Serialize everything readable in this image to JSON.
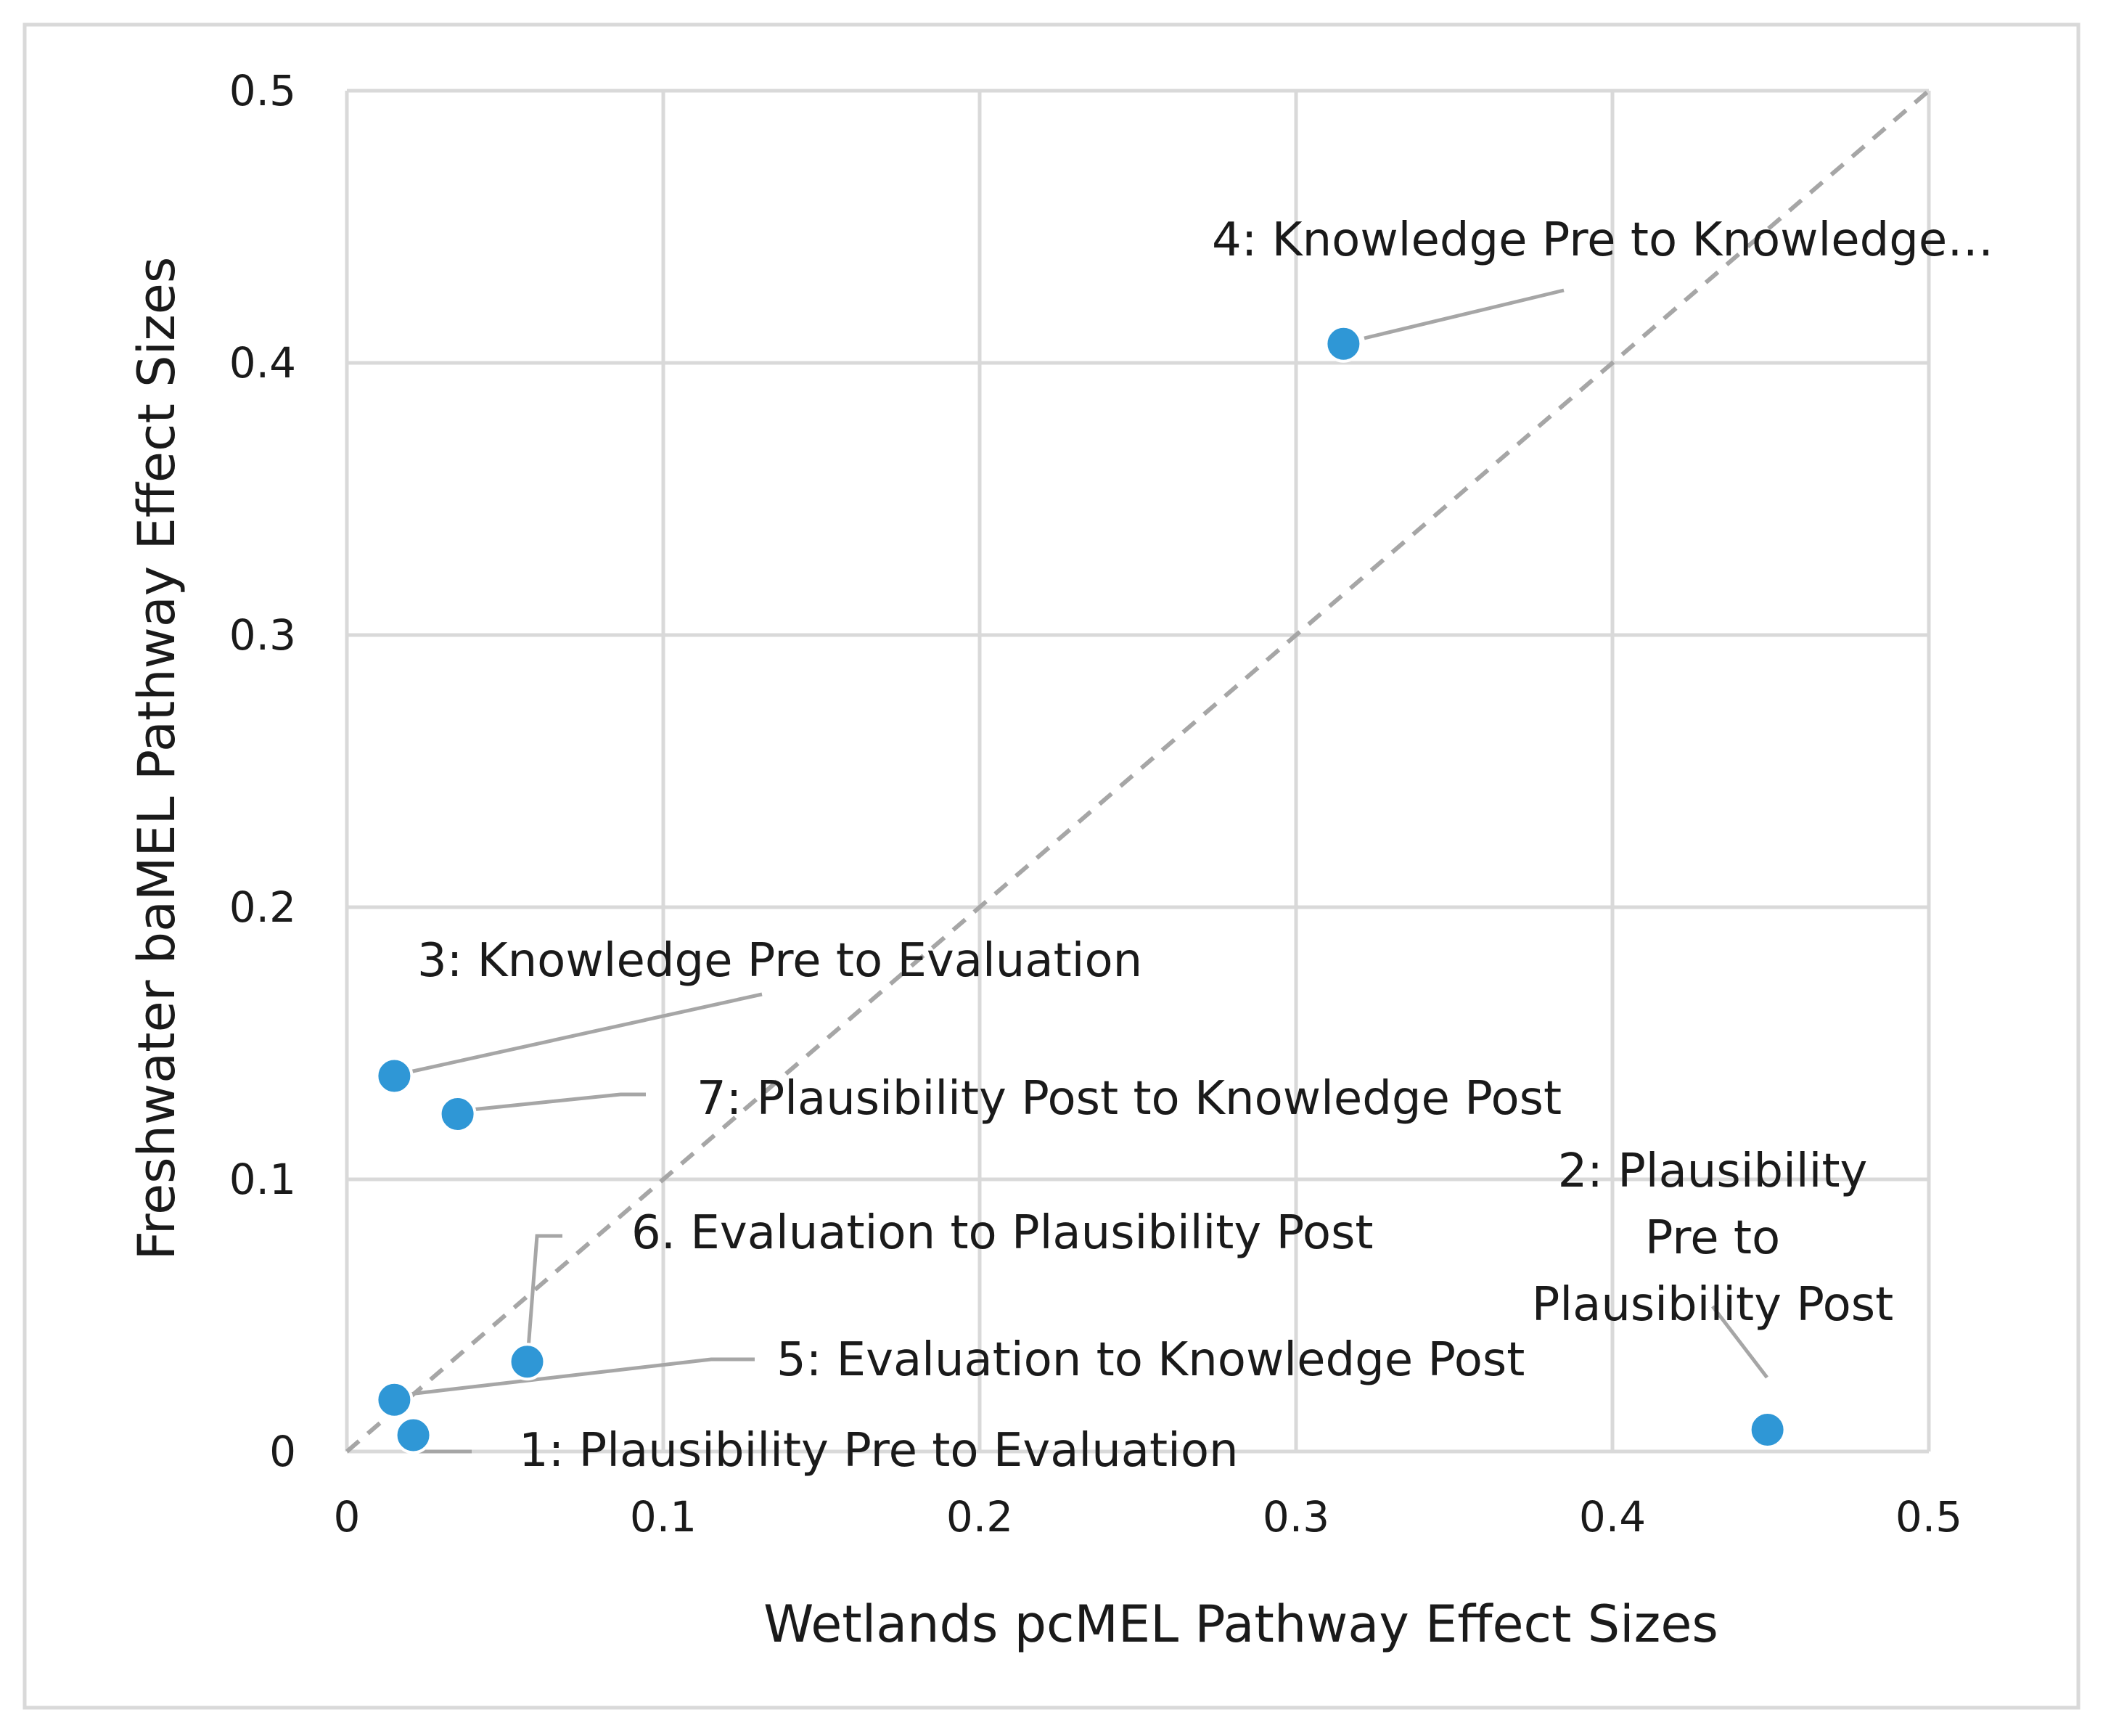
{
  "chart_data": {
    "type": "scatter",
    "title": "",
    "xlabel": "Wetlands pcMEL Pathway Effect Sizes",
    "ylabel": "Freshwater baMEL Pathway Effect Sizes",
    "xlim": [
      0,
      0.5
    ],
    "ylim": [
      0,
      0.5
    ],
    "x_ticks": [
      "0",
      "0.1",
      "0.2",
      "0.3",
      "0.4",
      "0.5"
    ],
    "y_ticks": [
      "0",
      "0.1",
      "0.2",
      "0.3",
      "0.4",
      "0.5"
    ],
    "grid": true,
    "reference_line": "y = x (dashed)",
    "point_color": "#2f97d6",
    "points": [
      {
        "id": 1,
        "label": "1: Plausibility Pre to Evaluation",
        "x": 0.021,
        "y": 0.006
      },
      {
        "id": 2,
        "label_lines": [
          "2: Plausibility",
          "Pre to",
          "Plausibility Post"
        ],
        "x": 0.449,
        "y": 0.008
      },
      {
        "id": 3,
        "label": "3: Knowledge Pre to Evaluation",
        "x": 0.015,
        "y": 0.138
      },
      {
        "id": 4,
        "label": "4: Knowledge Pre to Knowledge…",
        "x": 0.315,
        "y": 0.407
      },
      {
        "id": 5,
        "label": "5: Evaluation to Knowledge Post",
        "x": 0.015,
        "y": 0.019
      },
      {
        "id": 6,
        "label": "6. Evaluation to Plausibility Post",
        "x": 0.057,
        "y": 0.033
      },
      {
        "id": 7,
        "label": "7: Plausibility Post to Knowledge Post",
        "x": 0.035,
        "y": 0.124
      }
    ]
  }
}
